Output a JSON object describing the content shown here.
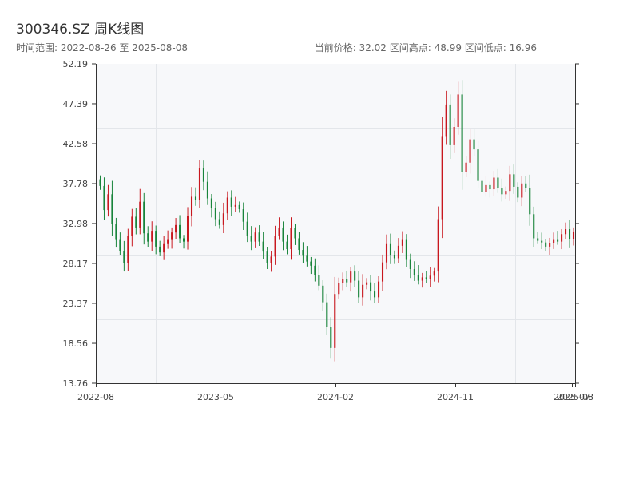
{
  "title": "300346.SZ 周K线图",
  "subtitle_left": "时间范围: 2022-08-26 至 2025-08-08",
  "subtitle_right": "当前价格: 32.02  区间高点: 48.99  区间低点: 16.96",
  "chart_data": {
    "type": "candlestick",
    "ylim": [
      13.76,
      52.19
    ],
    "y_ticks": [
      "13.76",
      "18.56",
      "23.37",
      "28.17",
      "32.98",
      "37.78",
      "42.58",
      "47.39",
      "52.19"
    ],
    "x_ticks": [
      "2022-08",
      "2023-05",
      "2024-02",
      "2024-11",
      "2025-07",
      "2025-08"
    ],
    "grid": true,
    "up_color": "#c8171e",
    "down_color": "#18843a",
    "current_price": 32.02,
    "range_high": 48.99,
    "range_low": 16.96,
    "closes": [
      37.5,
      34.6,
      36.5,
      32.9,
      31.0,
      29.7,
      28.2,
      31.5,
      33.8,
      32.5,
      35.6,
      31.8,
      30.8,
      32.1,
      30.2,
      29.5,
      30.5,
      31.0,
      31.9,
      32.8,
      31.2,
      30.8,
      33.9,
      36.2,
      35.8,
      39.6,
      38.0,
      36.0,
      34.8,
      33.5,
      32.8,
      34.2,
      36.1,
      35.0,
      35.2,
      34.7,
      33.2,
      31.5,
      30.8,
      31.9,
      30.8,
      29.6,
      28.2,
      29.0,
      31.5,
      32.5,
      30.8,
      29.9,
      32.4,
      31.2,
      29.8,
      29.1,
      28.4,
      27.9,
      26.8,
      25.5,
      23.5,
      20.5,
      18.0,
      24.5,
      25.8,
      26.3,
      25.9,
      27.2,
      26.1,
      24.1,
      25.6,
      25.9,
      24.8,
      24.1,
      26.0,
      28.3,
      30.5,
      29.2,
      28.8,
      30.3,
      31.0,
      28.6,
      27.5,
      26.8,
      26.1,
      26.5,
      26.3,
      26.7,
      27.2,
      33.5,
      43.5,
      47.3,
      42.4,
      44.6,
      48.5,
      39.2,
      40.3,
      43.1,
      41.9,
      38.1,
      36.8,
      37.6,
      37.1,
      38.5,
      37.2,
      36.5,
      36.9,
      38.9,
      37.4,
      36.1,
      37.8,
      37.3,
      34.1,
      31.2,
      30.9,
      30.7,
      30.2,
      30.6,
      31.0,
      30.8,
      31.7,
      32.3,
      31.1,
      32.02
    ]
  }
}
